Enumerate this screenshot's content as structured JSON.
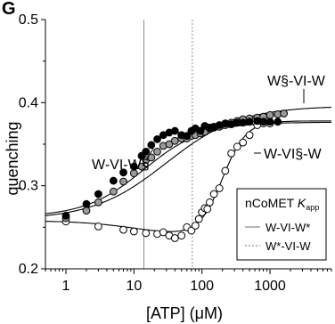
{
  "panel_label": "G",
  "colors": {
    "filled": "#000000",
    "gray": "#9a9a9a",
    "open_fill": "#ffffff",
    "vline_solid": "#8c8c8c",
    "vline_dashed": "#8c8c8c",
    "curve": "#000000"
  },
  "chart_data": {
    "type": "scatter",
    "xlabel": "[ATP] (μM)",
    "ylabel": "quenching",
    "xscale": "log",
    "xlim": [
      0.5,
      8000
    ],
    "ylim": [
      0.2,
      0.5
    ],
    "x_ticks": [
      1,
      10,
      100,
      1000
    ],
    "x_tick_labels": [
      "1",
      "10",
      "100",
      "1000"
    ],
    "y_ticks": [
      0.2,
      0.3,
      0.4,
      0.5
    ],
    "y_tick_labels": [
      "0.2",
      "0.3",
      "0.4",
      "0.5"
    ],
    "legend": {
      "title": "nCoMET",
      "title_italic": "K",
      "title_sub": "app",
      "entries": [
        {
          "label": "W-VI-W*",
          "style": "solid"
        },
        {
          "label": "W*-VI-W",
          "style": "dashed"
        }
      ]
    },
    "vlines": [
      {
        "x": 14,
        "style": "solid"
      },
      {
        "x": 72,
        "style": "dashed"
      }
    ],
    "series": [
      {
        "name": "W-VI-W§",
        "marker": "filled",
        "x": [
          1,
          2,
          3,
          5,
          7,
          10,
          13,
          15,
          18,
          22,
          27,
          33,
          40,
          50,
          60,
          70,
          80,
          95,
          110,
          130,
          150,
          180,
          220,
          270,
          330,
          400,
          500,
          650,
          800,
          1000,
          1300
        ],
        "y": [
          0.264,
          0.278,
          0.29,
          0.306,
          0.316,
          0.323,
          0.336,
          0.341,
          0.349,
          0.356,
          0.361,
          0.364,
          0.366,
          0.361,
          0.36,
          0.366,
          0.369,
          0.366,
          0.372,
          0.369,
          0.371,
          0.373,
          0.375,
          0.374,
          0.376,
          0.376,
          0.377,
          0.378,
          0.377,
          0.377,
          0.377
        ],
        "fit": {
          "bottom": 0.2625,
          "top": 0.3765,
          "k": 14,
          "n": 1
        }
      },
      {
        "name": "W§-VI-W",
        "marker": "gray",
        "x": [
          1,
          2,
          3,
          5,
          7,
          10,
          13,
          15,
          18,
          22,
          27,
          33,
          40,
          50,
          60,
          70,
          80,
          95,
          110,
          130,
          150,
          180,
          220,
          270,
          330,
          400,
          500,
          650,
          800,
          1000,
          1300,
          1600
        ],
        "y": [
          0.261,
          0.27,
          0.28,
          0.293,
          0.305,
          0.315,
          0.323,
          0.331,
          0.334,
          0.341,
          0.348,
          0.35,
          0.354,
          0.357,
          0.357,
          0.36,
          0.361,
          0.363,
          0.365,
          0.37,
          0.37,
          0.371,
          0.373,
          0.376,
          0.378,
          0.38,
          0.381,
          0.382,
          0.383,
          0.385,
          0.386,
          0.387
        ],
        "fit": {
          "bottom": 0.259,
          "top": 0.396,
          "k": 30,
          "n": 0.8
        }
      },
      {
        "name": "W-VI§-W",
        "marker": "open",
        "x": [
          1,
          3,
          7,
          10,
          15,
          22,
          27,
          33,
          40,
          50,
          60,
          70,
          80,
          90,
          100,
          110,
          120,
          130,
          150,
          180,
          220,
          270,
          330,
          400,
          500,
          650,
          800,
          1000
        ],
        "y": [
          0.257,
          0.251,
          0.247,
          0.245,
          0.243,
          0.242,
          0.244,
          0.24,
          0.237,
          0.24,
          0.25,
          0.246,
          0.252,
          0.26,
          0.268,
          0.273,
          0.272,
          0.28,
          0.29,
          0.297,
          0.318,
          0.339,
          0.347,
          0.352,
          0.361,
          0.373,
          0.375,
          0.375
        ],
        "fit": {
          "bottom": 0.258,
          "top": 0.378,
          "k": 200,
          "n": 2.5,
          "dip": 0.02,
          "dipk": 12
        }
      }
    ],
    "annotations": [
      {
        "text": "W§-VI-W",
        "series": 1
      },
      {
        "text": "W-VI-W§",
        "series": 0
      },
      {
        "text": "W-VI§-W",
        "series": 2
      }
    ]
  }
}
